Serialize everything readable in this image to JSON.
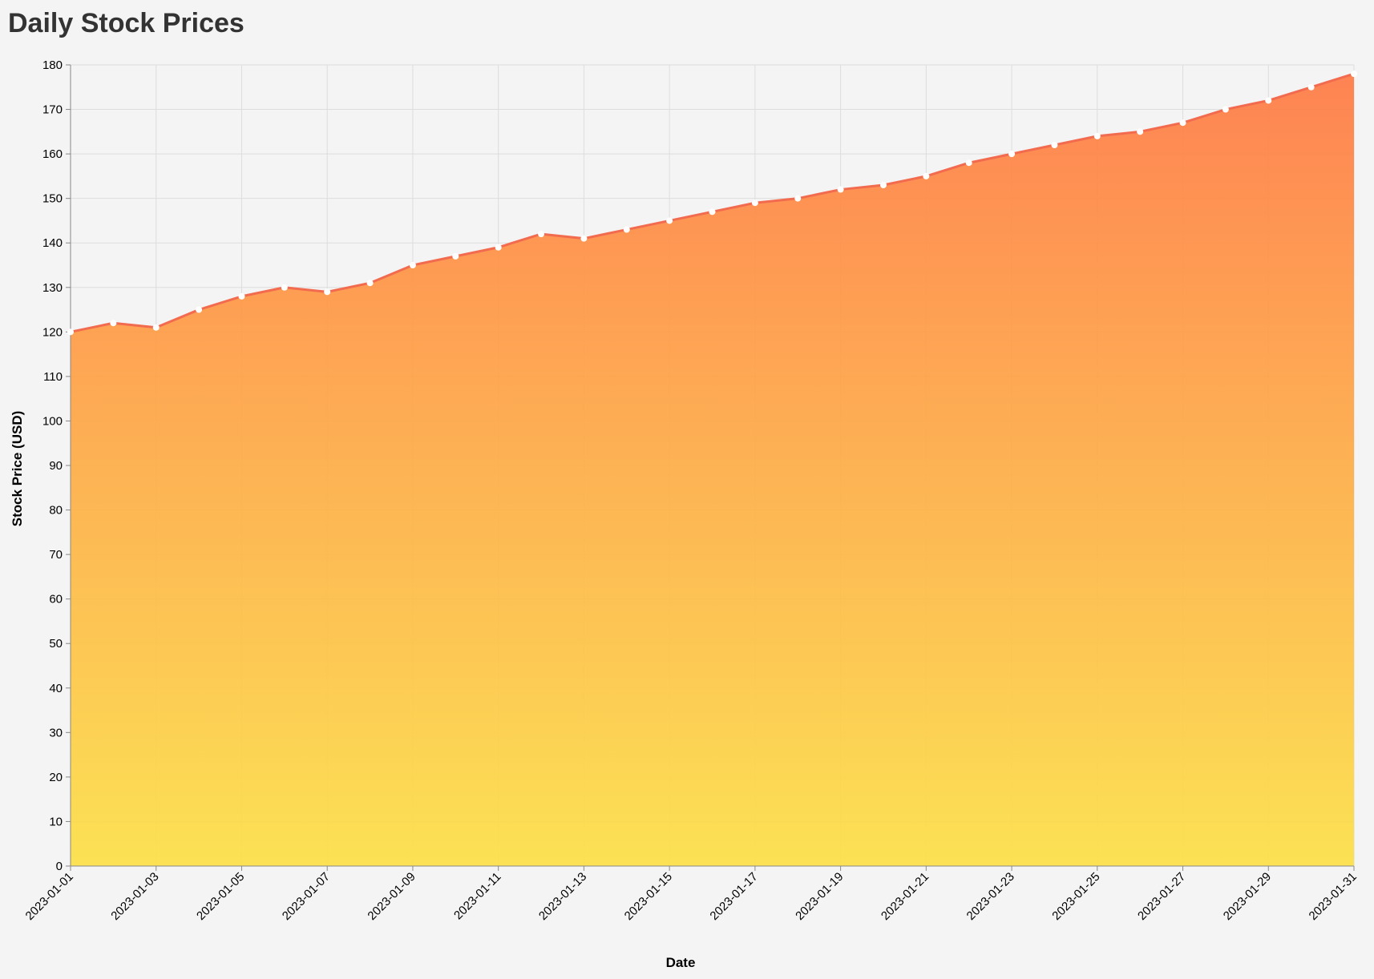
{
  "colors": {
    "background": "#f4f4f4",
    "line": "#f26b4f",
    "gradient_top": "#ff7a45",
    "gradient_bottom": "#fde047",
    "point": "#ffffff",
    "grid": "#dddddd",
    "title": "#333333"
  },
  "chart_data": {
    "type": "area",
    "title": "Daily Stock Prices",
    "xlabel": "Date",
    "ylabel": "Stock Price (USD)",
    "ylim": [
      0,
      180
    ],
    "y_ticks": [
      0,
      10,
      20,
      30,
      40,
      50,
      60,
      70,
      80,
      90,
      100,
      110,
      120,
      130,
      140,
      150,
      160,
      170,
      180
    ],
    "x_tick_labels": [
      "2023-01-01",
      "2023-01-03",
      "2023-01-05",
      "2023-01-07",
      "2023-01-09",
      "2023-01-11",
      "2023-01-13",
      "2023-01-15",
      "2023-01-17",
      "2023-01-19",
      "2023-01-21",
      "2023-01-23",
      "2023-01-25",
      "2023-01-27",
      "2023-01-29",
      "2023-01-31"
    ],
    "grid": true,
    "points_shown": true,
    "x": [
      "2023-01-01",
      "2023-01-02",
      "2023-01-03",
      "2023-01-04",
      "2023-01-05",
      "2023-01-06",
      "2023-01-07",
      "2023-01-08",
      "2023-01-09",
      "2023-01-10",
      "2023-01-11",
      "2023-01-12",
      "2023-01-13",
      "2023-01-14",
      "2023-01-15",
      "2023-01-16",
      "2023-01-17",
      "2023-01-18",
      "2023-01-19",
      "2023-01-20",
      "2023-01-21",
      "2023-01-22",
      "2023-01-23",
      "2023-01-24",
      "2023-01-25",
      "2023-01-26",
      "2023-01-27",
      "2023-01-28",
      "2023-01-29",
      "2023-01-30",
      "2023-01-31"
    ],
    "values": [
      120,
      122,
      121,
      125,
      128,
      130,
      129,
      131,
      135,
      137,
      139,
      142,
      141,
      143,
      145,
      147,
      149,
      150,
      152,
      153,
      155,
      158,
      160,
      162,
      164,
      165,
      167,
      170,
      172,
      175,
      178
    ]
  }
}
